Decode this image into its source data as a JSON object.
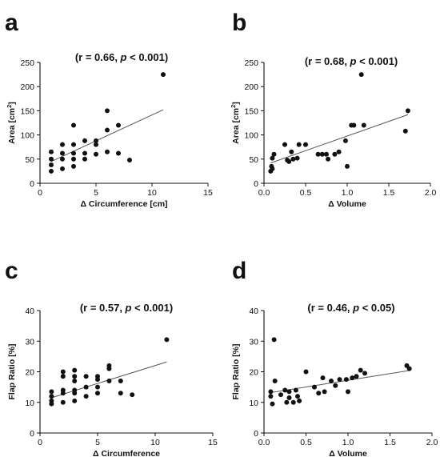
{
  "chart_data": [
    {
      "panel": "a",
      "type": "scatter",
      "annotation": {
        "pre": "(r = 0.66, ",
        "p": "p",
        "post": " < 0.001)"
      },
      "xlabel": "Δ Circumference [cm]",
      "ylabel": {
        "text": "Area [cm",
        "sup": "2",
        "suffix": "]"
      },
      "xlim": [
        0,
        15
      ],
      "ylim": [
        0,
        250
      ],
      "xticks": [
        0,
        5,
        10,
        15
      ],
      "yticks": [
        0,
        50,
        100,
        150,
        200,
        250
      ],
      "xtick_labels": [
        "0",
        "5",
        "10",
        "15"
      ],
      "ytick_labels": [
        "0",
        "50",
        "100",
        "150",
        "200",
        "250"
      ],
      "points": [
        [
          1,
          25
        ],
        [
          1,
          38
        ],
        [
          1,
          50
        ],
        [
          1,
          65
        ],
        [
          2,
          30
        ],
        [
          2,
          50
        ],
        [
          2,
          62
        ],
        [
          2,
          80
        ],
        [
          3,
          35
        ],
        [
          3,
          50
        ],
        [
          3,
          62
        ],
        [
          3,
          80
        ],
        [
          3,
          120
        ],
        [
          4,
          50
        ],
        [
          4,
          62
        ],
        [
          4,
          88
        ],
        [
          5,
          60
        ],
        [
          5,
          80
        ],
        [
          5,
          88
        ],
        [
          6,
          65
        ],
        [
          6,
          110
        ],
        [
          6,
          150
        ],
        [
          7,
          62
        ],
        [
          7,
          120
        ],
        [
          8,
          48
        ],
        [
          11,
          225
        ]
      ],
      "fit": {
        "x": [
          1,
          11
        ],
        "y": [
          45,
          152
        ]
      }
    },
    {
      "panel": "b",
      "type": "scatter",
      "annotation": {
        "pre": "(r = 0.68, ",
        "p": "p",
        "post": " < 0.001)"
      },
      "xlabel": "Δ Volume",
      "ylabel": {
        "text": "Area [cm",
        "sup": "2",
        "suffix": "]"
      },
      "xlim": [
        0,
        2.0
      ],
      "ylim": [
        0,
        250
      ],
      "xticks": [
        0,
        0.5,
        1.0,
        1.5,
        2.0
      ],
      "yticks": [
        0,
        50,
        100,
        150,
        200,
        250
      ],
      "xtick_labels": [
        "0.0",
        "0.5",
        "1.0",
        "1.5",
        "2.0"
      ],
      "ytick_labels": [
        "0",
        "50",
        "100",
        "150",
        "200",
        "250"
      ],
      "points": [
        [
          0.08,
          25
        ],
        [
          0.09,
          35
        ],
        [
          0.1,
          30
        ],
        [
          0.1,
          52
        ],
        [
          0.12,
          60
        ],
        [
          0.25,
          80
        ],
        [
          0.28,
          48
        ],
        [
          0.3,
          45
        ],
        [
          0.33,
          65
        ],
        [
          0.35,
          50
        ],
        [
          0.4,
          52
        ],
        [
          0.42,
          80
        ],
        [
          0.5,
          80
        ],
        [
          0.65,
          60
        ],
        [
          0.7,
          60
        ],
        [
          0.75,
          60
        ],
        [
          0.77,
          50
        ],
        [
          0.85,
          60
        ],
        [
          0.9,
          65
        ],
        [
          0.98,
          88
        ],
        [
          1.0,
          35
        ],
        [
          1.05,
          120
        ],
        [
          1.08,
          120
        ],
        [
          1.17,
          225
        ],
        [
          1.2,
          120
        ],
        [
          1.7,
          108
        ],
        [
          1.73,
          150
        ]
      ],
      "fit": {
        "x": [
          0.08,
          1.73
        ],
        "y": [
          42,
          142
        ]
      }
    },
    {
      "panel": "c",
      "type": "scatter",
      "annotation": {
        "pre": "(r = 0.57, ",
        "p": "p",
        "post": " < 0.001)"
      },
      "xlabel": "Δ Circumference",
      "ylabel": {
        "text": "Flap Ratio [%]",
        "sup": "",
        "suffix": ""
      },
      "xlim": [
        0,
        15
      ],
      "ylim": [
        0,
        40
      ],
      "xticks": [
        0,
        5,
        10,
        15
      ],
      "yticks": [
        0,
        10,
        20,
        30,
        40
      ],
      "xtick_labels": [
        "0",
        "5",
        "10",
        "15"
      ],
      "ytick_labels": [
        "0",
        "10",
        "20",
        "30",
        "40"
      ],
      "points": [
        [
          1,
          9.5
        ],
        [
          1,
          10.5
        ],
        [
          1,
          12
        ],
        [
          1,
          13.5
        ],
        [
          2,
          10
        ],
        [
          2,
          13
        ],
        [
          2,
          14
        ],
        [
          2,
          18.5
        ],
        [
          2,
          20
        ],
        [
          3,
          10.5
        ],
        [
          3,
          13
        ],
        [
          3,
          14
        ],
        [
          3,
          17
        ],
        [
          3,
          18.5
        ],
        [
          3,
          20.5
        ],
        [
          4,
          12
        ],
        [
          4,
          15
        ],
        [
          4,
          18.5
        ],
        [
          5,
          13
        ],
        [
          5,
          15
        ],
        [
          5,
          17.5
        ],
        [
          5,
          18.5
        ],
        [
          6,
          17
        ],
        [
          6,
          21
        ],
        [
          6,
          22
        ],
        [
          7,
          13
        ],
        [
          7,
          17
        ],
        [
          8,
          12.5
        ],
        [
          11,
          30.5
        ]
      ],
      "fit": {
        "x": [
          1,
          11
        ],
        "y": [
          11.5,
          23.2
        ]
      }
    },
    {
      "panel": "d",
      "type": "scatter",
      "annotation": {
        "pre": "(r = 0.46, ",
        "p": "p",
        "post": " < 0.05)"
      },
      "xlabel": "Δ Volume",
      "ylabel": {
        "text": "Flap Ratio [%]",
        "sup": "",
        "suffix": ""
      },
      "xlim": [
        0,
        2.0
      ],
      "ylim": [
        0,
        40
      ],
      "xticks": [
        0,
        0.5,
        1.0,
        1.5,
        2.0
      ],
      "yticks": [
        0,
        10,
        20,
        30,
        40
      ],
      "xtick_labels": [
        "0.0",
        "0.5",
        "1.0",
        "1.5",
        "2.0"
      ],
      "ytick_labels": [
        "0",
        "10",
        "20",
        "30",
        "40"
      ],
      "points": [
        [
          0.08,
          12
        ],
        [
          0.08,
          13.5
        ],
        [
          0.1,
          9.5
        ],
        [
          0.12,
          30.5
        ],
        [
          0.13,
          17
        ],
        [
          0.2,
          12.5
        ],
        [
          0.25,
          14
        ],
        [
          0.27,
          10
        ],
        [
          0.3,
          11.5
        ],
        [
          0.3,
          13.5
        ],
        [
          0.35,
          10
        ],
        [
          0.38,
          14
        ],
        [
          0.4,
          12
        ],
        [
          0.42,
          10.5
        ],
        [
          0.5,
          20
        ],
        [
          0.6,
          15
        ],
        [
          0.65,
          13
        ],
        [
          0.7,
          18
        ],
        [
          0.72,
          13.5
        ],
        [
          0.8,
          17
        ],
        [
          0.85,
          15.5
        ],
        [
          0.9,
          17.5
        ],
        [
          0.98,
          17.5
        ],
        [
          1.0,
          13.5
        ],
        [
          1.05,
          18
        ],
        [
          1.1,
          18.5
        ],
        [
          1.15,
          20.5
        ],
        [
          1.2,
          19.5
        ],
        [
          1.7,
          22
        ],
        [
          1.73,
          21
        ]
      ],
      "fit": {
        "x": [
          0.08,
          1.73
        ],
        "y": [
          13.2,
          20.4
        ]
      }
    }
  ]
}
